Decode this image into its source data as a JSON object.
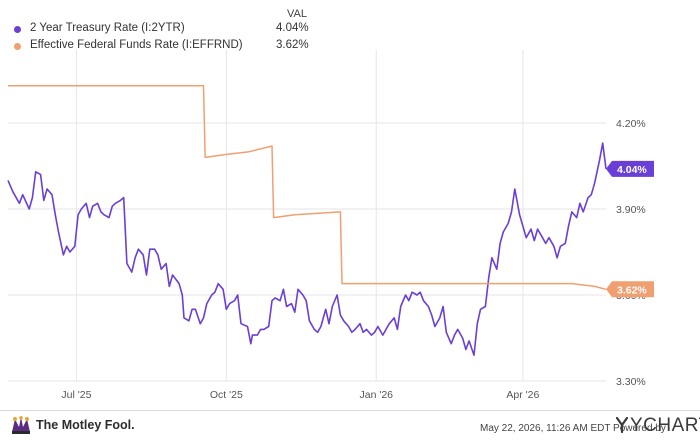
{
  "legend": {
    "header": "VAL",
    "items": [
      {
        "name": "2 Year Treasury Rate (I:2YTR)",
        "value": "4.04%",
        "color": "#6a3fd6"
      },
      {
        "name": "Effective Federal Funds Rate (I:EFFRND)",
        "value": "3.62%",
        "color": "#f0a070"
      }
    ]
  },
  "chart_data": {
    "type": "line",
    "x_range": [
      "2025-05-20",
      "2026-05-22"
    ],
    "ylim": [
      3.3,
      4.42
    ],
    "y_ticks": [
      {
        "value": 4.2,
        "label": "4.20%"
      },
      {
        "value": 3.9,
        "label": "3.90%"
      },
      {
        "value": 3.6,
        "label": "3.60%"
      },
      {
        "value": 3.3,
        "label": "3.30%"
      }
    ],
    "x_ticks": [
      {
        "date": "2025-07-01",
        "label": "Jul '25"
      },
      {
        "date": "2025-10-01",
        "label": "Oct '25"
      },
      {
        "date": "2026-01-01",
        "label": "Jan '26"
      },
      {
        "date": "2026-04-01",
        "label": "Apr '26"
      }
    ],
    "grid": true,
    "series": [
      {
        "name": "2 Year Treasury Rate (I:2YTR)",
        "color": "#6a3fd6",
        "end_label": "4.04%",
        "points": [
          [
            "2025-05-20",
            4.0
          ],
          [
            "2025-05-23",
            3.96
          ],
          [
            "2025-05-27",
            3.92
          ],
          [
            "2025-05-29",
            3.95
          ],
          [
            "2025-06-02",
            3.9
          ],
          [
            "2025-06-04",
            3.94
          ],
          [
            "2025-06-06",
            4.03
          ],
          [
            "2025-06-09",
            4.02
          ],
          [
            "2025-06-11",
            3.93
          ],
          [
            "2025-06-13",
            3.97
          ],
          [
            "2025-06-16",
            3.95
          ],
          [
            "2025-06-18",
            3.88
          ],
          [
            "2025-06-20",
            3.82
          ],
          [
            "2025-06-23",
            3.74
          ],
          [
            "2025-06-25",
            3.77
          ],
          [
            "2025-06-27",
            3.75
          ],
          [
            "2025-06-30",
            3.77
          ],
          [
            "2025-07-02",
            3.88
          ],
          [
            "2025-07-04",
            3.9
          ],
          [
            "2025-07-07",
            3.92
          ],
          [
            "2025-07-09",
            3.87
          ],
          [
            "2025-07-11",
            3.91
          ],
          [
            "2025-07-14",
            3.92
          ],
          [
            "2025-07-16",
            3.89
          ],
          [
            "2025-07-18",
            3.88
          ],
          [
            "2025-07-21",
            3.87
          ],
          [
            "2025-07-23",
            3.91
          ],
          [
            "2025-07-25",
            3.92
          ],
          [
            "2025-07-28",
            3.93
          ],
          [
            "2025-07-30",
            3.94
          ],
          [
            "2025-08-01",
            3.71
          ],
          [
            "2025-08-04",
            3.68
          ],
          [
            "2025-08-06",
            3.73
          ],
          [
            "2025-08-08",
            3.76
          ],
          [
            "2025-08-11",
            3.74
          ],
          [
            "2025-08-13",
            3.67
          ],
          [
            "2025-08-15",
            3.76
          ],
          [
            "2025-08-18",
            3.76
          ],
          [
            "2025-08-20",
            3.74
          ],
          [
            "2025-08-22",
            3.69
          ],
          [
            "2025-08-25",
            3.71
          ],
          [
            "2025-08-27",
            3.63
          ],
          [
            "2025-08-29",
            3.67
          ],
          [
            "2025-09-02",
            3.64
          ],
          [
            "2025-09-04",
            3.6
          ],
          [
            "2025-09-05",
            3.52
          ],
          [
            "2025-09-08",
            3.51
          ],
          [
            "2025-09-10",
            3.55
          ],
          [
            "2025-09-12",
            3.55
          ],
          [
            "2025-09-15",
            3.5
          ],
          [
            "2025-09-17",
            3.52
          ],
          [
            "2025-09-19",
            3.57
          ],
          [
            "2025-09-22",
            3.6
          ],
          [
            "2025-09-24",
            3.61
          ],
          [
            "2025-09-26",
            3.64
          ],
          [
            "2025-09-29",
            3.62
          ],
          [
            "2025-10-01",
            3.55
          ],
          [
            "2025-10-03",
            3.57
          ],
          [
            "2025-10-06",
            3.58
          ],
          [
            "2025-10-08",
            3.6
          ],
          [
            "2025-10-10",
            3.5
          ],
          [
            "2025-10-14",
            3.49
          ],
          [
            "2025-10-16",
            3.43
          ],
          [
            "2025-10-17",
            3.46
          ],
          [
            "2025-10-20",
            3.46
          ],
          [
            "2025-10-22",
            3.48
          ],
          [
            "2025-10-24",
            3.48
          ],
          [
            "2025-10-27",
            3.49
          ],
          [
            "2025-10-29",
            3.58
          ],
          [
            "2025-10-31",
            3.59
          ],
          [
            "2025-11-03",
            3.58
          ],
          [
            "2025-11-05",
            3.62
          ],
          [
            "2025-11-07",
            3.56
          ],
          [
            "2025-11-10",
            3.57
          ],
          [
            "2025-11-12",
            3.54
          ],
          [
            "2025-11-14",
            3.62
          ],
          [
            "2025-11-17",
            3.6
          ],
          [
            "2025-11-19",
            3.58
          ],
          [
            "2025-11-21",
            3.51
          ],
          [
            "2025-11-24",
            3.48
          ],
          [
            "2025-11-26",
            3.47
          ],
          [
            "2025-11-28",
            3.49
          ],
          [
            "2025-12-01",
            3.55
          ],
          [
            "2025-12-03",
            3.5
          ],
          [
            "2025-12-05",
            3.56
          ],
          [
            "2025-12-08",
            3.6
          ],
          [
            "2025-12-10",
            3.53
          ],
          [
            "2025-12-12",
            3.51
          ],
          [
            "2025-12-15",
            3.49
          ],
          [
            "2025-12-17",
            3.47
          ],
          [
            "2025-12-19",
            3.48
          ],
          [
            "2025-12-22",
            3.5
          ],
          [
            "2025-12-24",
            3.47
          ],
          [
            "2025-12-26",
            3.48
          ],
          [
            "2025-12-29",
            3.46
          ],
          [
            "2025-12-31",
            3.47
          ],
          [
            "2026-01-02",
            3.49
          ],
          [
            "2026-01-05",
            3.46
          ],
          [
            "2026-01-07",
            3.48
          ],
          [
            "2026-01-09",
            3.5
          ],
          [
            "2026-01-12",
            3.52
          ],
          [
            "2026-01-14",
            3.48
          ],
          [
            "2026-01-16",
            3.56
          ],
          [
            "2026-01-19",
            3.6
          ],
          [
            "2026-01-21",
            3.58
          ],
          [
            "2026-01-23",
            3.61
          ],
          [
            "2026-01-26",
            3.6
          ],
          [
            "2026-01-28",
            3.61
          ],
          [
            "2026-01-30",
            3.58
          ],
          [
            "2026-02-02",
            3.56
          ],
          [
            "2026-02-04",
            3.53
          ],
          [
            "2026-02-06",
            3.49
          ],
          [
            "2026-02-09",
            3.52
          ],
          [
            "2026-02-11",
            3.56
          ],
          [
            "2026-02-13",
            3.47
          ],
          [
            "2026-02-16",
            3.43
          ],
          [
            "2026-02-18",
            3.46
          ],
          [
            "2026-02-20",
            3.48
          ],
          [
            "2026-02-23",
            3.45
          ],
          [
            "2026-02-25",
            3.41
          ],
          [
            "2026-02-27",
            3.44
          ],
          [
            "2026-03-02",
            3.39
          ],
          [
            "2026-03-04",
            3.5
          ],
          [
            "2026-03-06",
            3.55
          ],
          [
            "2026-03-09",
            3.56
          ],
          [
            "2026-03-11",
            3.66
          ],
          [
            "2026-03-13",
            3.73
          ],
          [
            "2026-03-16",
            3.69
          ],
          [
            "2026-03-18",
            3.78
          ],
          [
            "2026-03-20",
            3.82
          ],
          [
            "2026-03-23",
            3.85
          ],
          [
            "2026-03-25",
            3.89
          ],
          [
            "2026-03-27",
            3.97
          ],
          [
            "2026-03-30",
            3.88
          ],
          [
            "2026-04-01",
            3.84
          ],
          [
            "2026-04-03",
            3.8
          ],
          [
            "2026-04-06",
            3.83
          ],
          [
            "2026-04-08",
            3.79
          ],
          [
            "2026-04-10",
            3.83
          ],
          [
            "2026-04-13",
            3.8
          ],
          [
            "2026-04-15",
            3.78
          ],
          [
            "2026-04-17",
            3.8
          ],
          [
            "2026-04-20",
            3.77
          ],
          [
            "2026-04-22",
            3.73
          ],
          [
            "2026-04-24",
            3.77
          ],
          [
            "2026-04-27",
            3.78
          ],
          [
            "2026-04-29",
            3.84
          ],
          [
            "2026-05-01",
            3.89
          ],
          [
            "2026-05-04",
            3.87
          ],
          [
            "2026-05-06",
            3.92
          ],
          [
            "2026-05-08",
            3.89
          ],
          [
            "2026-05-11",
            3.94
          ],
          [
            "2026-05-13",
            3.95
          ],
          [
            "2026-05-15",
            3.99
          ],
          [
            "2026-05-18",
            4.07
          ],
          [
            "2026-05-20",
            4.13
          ],
          [
            "2026-05-22",
            4.04
          ]
        ]
      },
      {
        "name": "Effective Federal Funds Rate (I:EFFRND)",
        "color": "#f0a070",
        "end_label": "3.62%",
        "step": true,
        "points": [
          [
            "2025-05-20",
            4.33
          ],
          [
            "2025-09-17",
            4.33
          ],
          [
            "2025-09-18",
            4.08
          ],
          [
            "2025-09-30",
            4.09
          ],
          [
            "2025-10-15",
            4.1
          ],
          [
            "2025-10-29",
            4.12
          ],
          [
            "2025-10-30",
            3.87
          ],
          [
            "2025-11-12",
            3.88
          ],
          [
            "2025-12-10",
            3.89
          ],
          [
            "2025-12-11",
            3.64
          ],
          [
            "2026-05-01",
            3.64
          ],
          [
            "2026-05-15",
            3.63
          ],
          [
            "2026-05-22",
            3.62
          ]
        ]
      }
    ]
  },
  "footer": {
    "brand_left": "The Motley Fool.",
    "timestamp": "May 22, 2026, 11:26 AM EDT Powered by",
    "brand_right": "YCHARTS"
  }
}
